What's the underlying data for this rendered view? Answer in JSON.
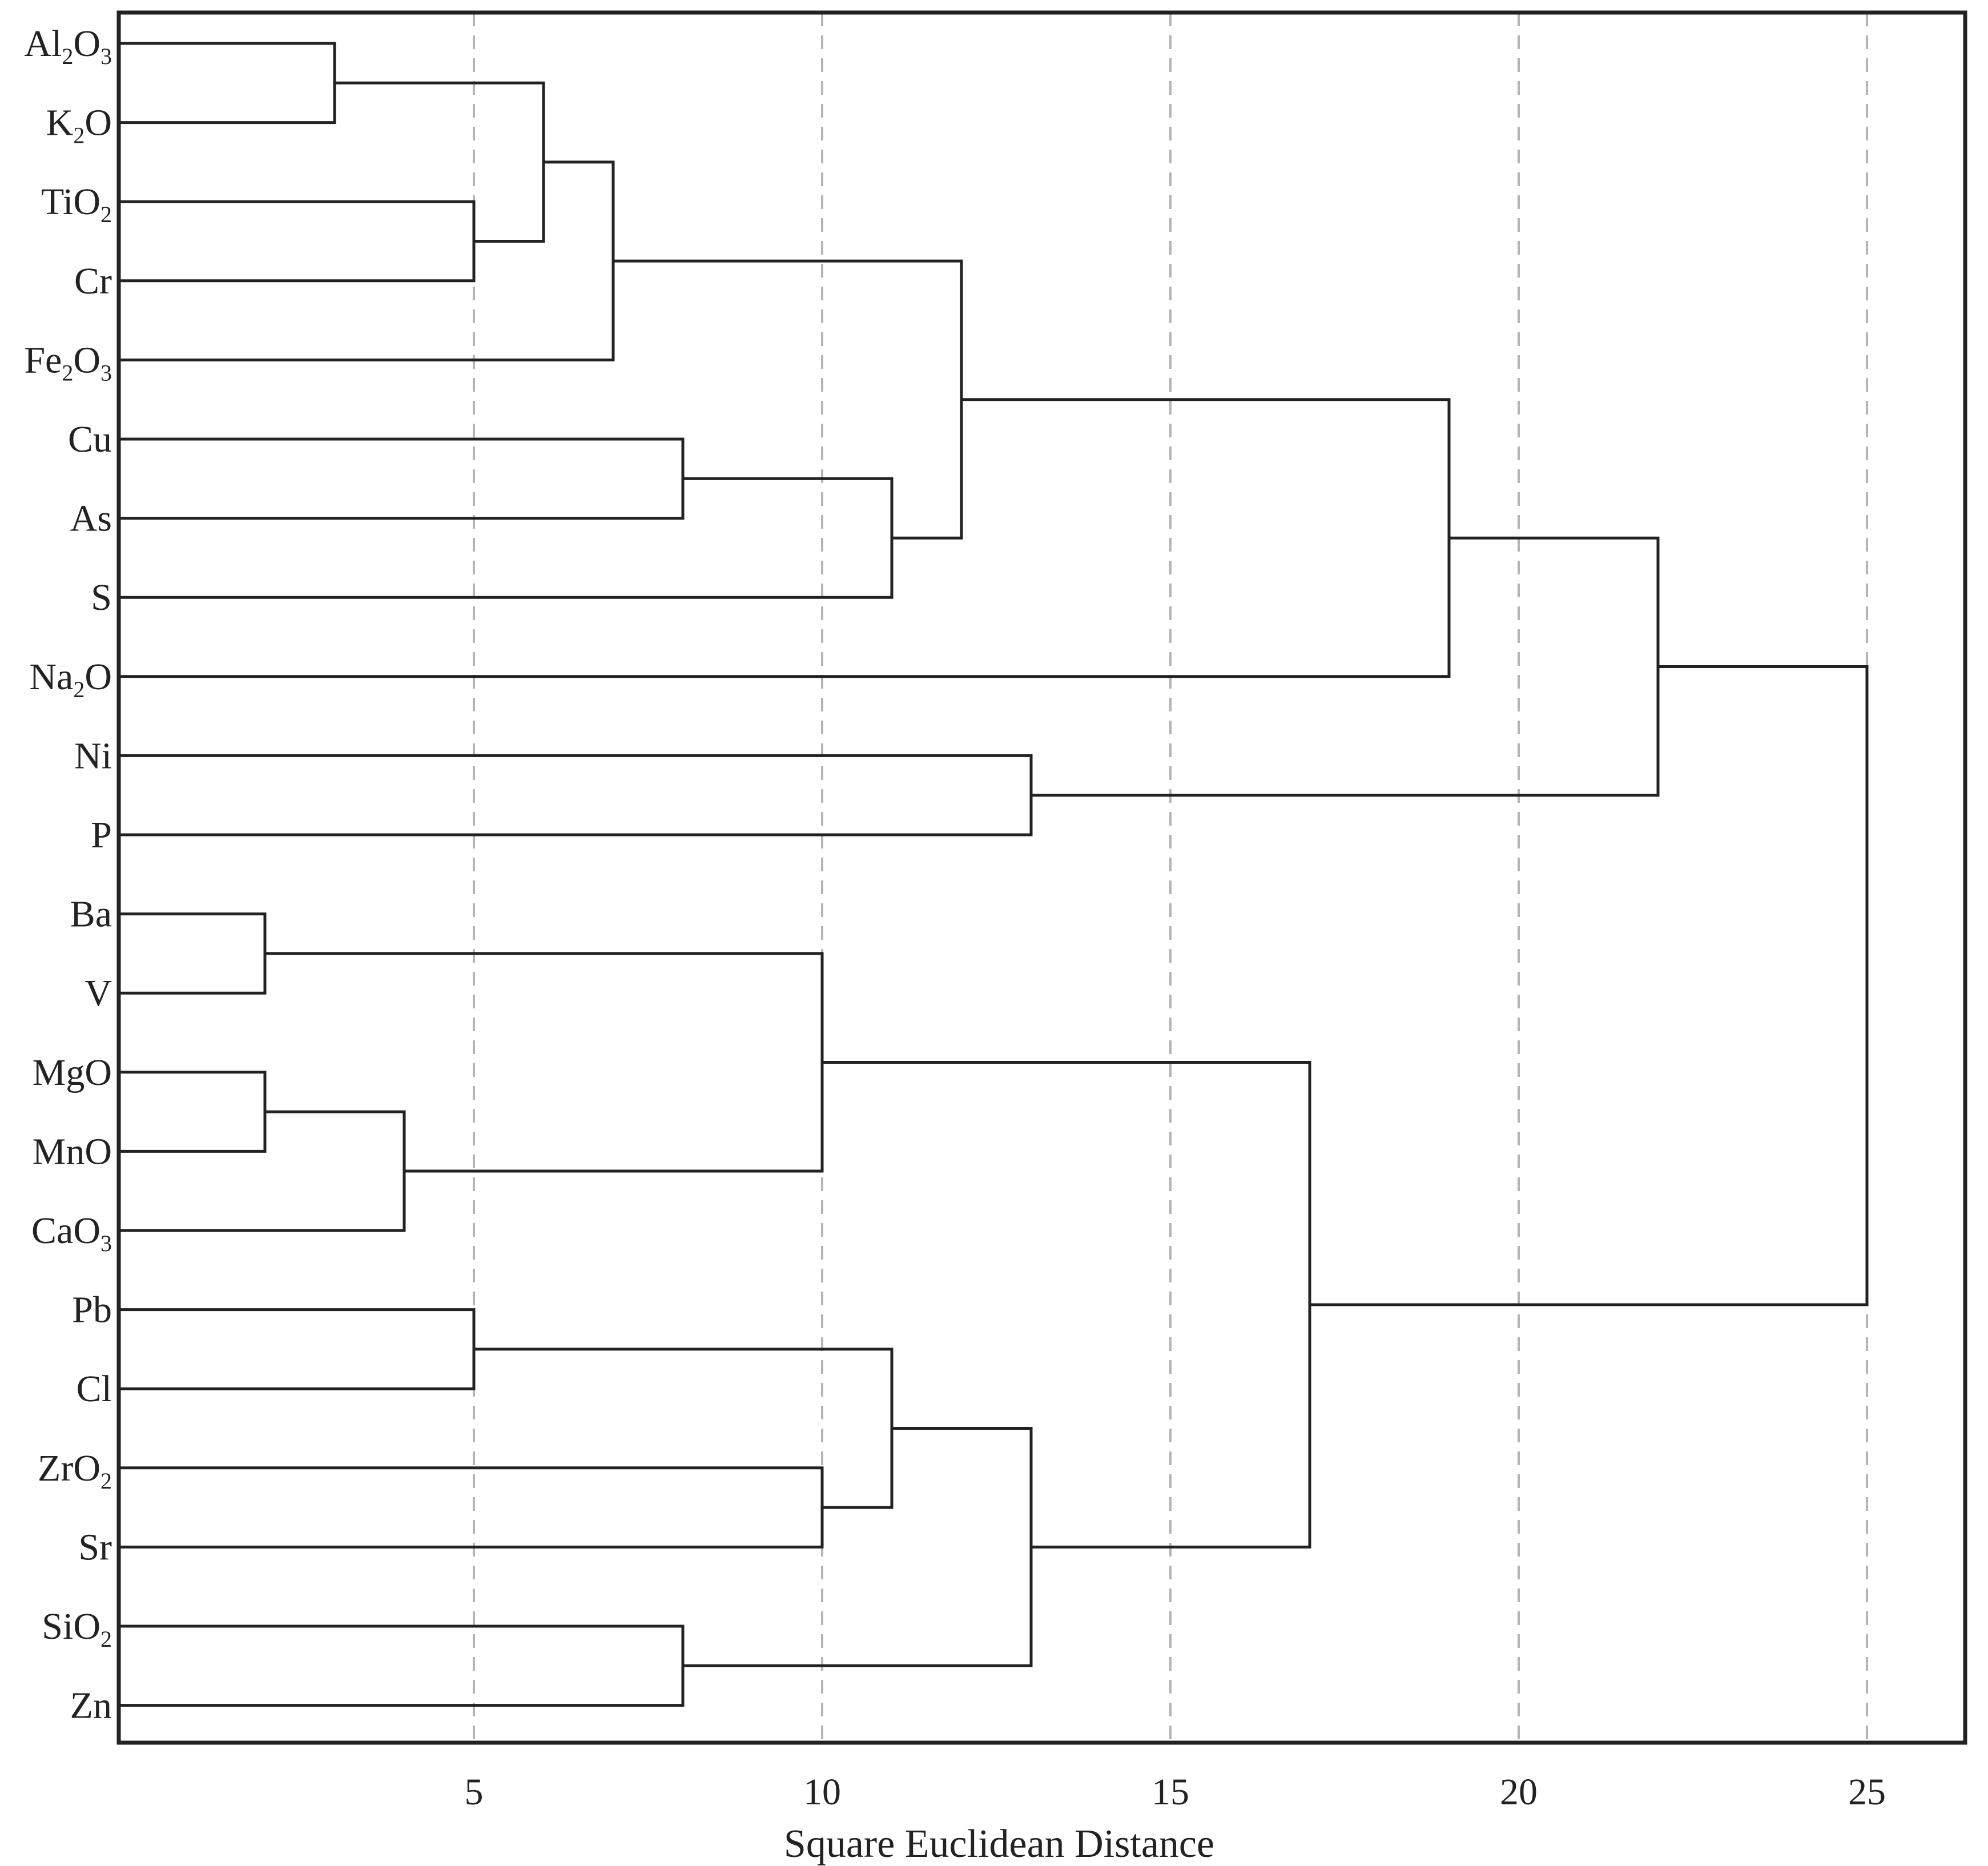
{
  "chart_data": {
    "type": "dendrogram",
    "title": "",
    "xlabel": "Square Euclidean Distance",
    "ylabel": "",
    "xlim": [
      0,
      26.3
    ],
    "xticks": [
      5,
      10,
      15,
      20,
      25
    ],
    "grid": true,
    "colors": {
      "lines": "#222222",
      "grid": "#b4b4b4",
      "background": "#ffffff"
    },
    "leaves": [
      {
        "label": "Al2O3",
        "base": "Al",
        "parts": [
          {
            "t": "Al"
          },
          {
            "t": "2",
            "sub": true
          },
          {
            "t": "O"
          },
          {
            "t": "3",
            "sub": true
          }
        ]
      },
      {
        "label": "K2O",
        "parts": [
          {
            "t": "K"
          },
          {
            "t": "2",
            "sub": true
          },
          {
            "t": "O"
          }
        ]
      },
      {
        "label": "TiO2",
        "parts": [
          {
            "t": "TiO"
          },
          {
            "t": "2",
            "sub": true
          }
        ]
      },
      {
        "label": "Cr",
        "parts": [
          {
            "t": "Cr"
          }
        ]
      },
      {
        "label": "Fe2O3",
        "parts": [
          {
            "t": "Fe"
          },
          {
            "t": "2",
            "sub": true
          },
          {
            "t": "O"
          },
          {
            "t": "3",
            "sub": true
          }
        ]
      },
      {
        "label": "Cu",
        "parts": [
          {
            "t": "Cu"
          }
        ]
      },
      {
        "label": "As",
        "parts": [
          {
            "t": "As"
          }
        ]
      },
      {
        "label": "S",
        "parts": [
          {
            "t": "S"
          }
        ]
      },
      {
        "label": "Na2O",
        "parts": [
          {
            "t": "Na"
          },
          {
            "t": "2",
            "sub": true
          },
          {
            "t": "O"
          }
        ]
      },
      {
        "label": "Ni",
        "parts": [
          {
            "t": "Ni"
          }
        ]
      },
      {
        "label": "P",
        "parts": [
          {
            "t": "P"
          }
        ]
      },
      {
        "label": "Ba",
        "parts": [
          {
            "t": "Ba"
          }
        ]
      },
      {
        "label": "V",
        "parts": [
          {
            "t": "V"
          }
        ]
      },
      {
        "label": "MgO",
        "parts": [
          {
            "t": "MgO"
          }
        ]
      },
      {
        "label": "MnO",
        "parts": [
          {
            "t": "MnO"
          }
        ]
      },
      {
        "label": "CaO3",
        "parts": [
          {
            "t": "CaO"
          },
          {
            "t": "3",
            "sub": true
          }
        ]
      },
      {
        "label": "Pb",
        "parts": [
          {
            "t": "Pb"
          }
        ]
      },
      {
        "label": "Cl",
        "parts": [
          {
            "t": "Cl"
          }
        ]
      },
      {
        "label": "ZrO2",
        "parts": [
          {
            "t": "ZrO"
          },
          {
            "t": "2",
            "sub": true
          }
        ]
      },
      {
        "label": "Sr",
        "parts": [
          {
            "t": "Sr"
          }
        ]
      },
      {
        "label": "SiO2",
        "parts": [
          {
            "t": "SiO"
          },
          {
            "t": "2",
            "sub": true
          }
        ]
      },
      {
        "label": "Zn",
        "parts": [
          {
            "t": "Zn"
          }
        ]
      }
    ],
    "merges": [
      {
        "id": "m1",
        "left": "L0",
        "right": "L1",
        "distance": 3.0
      },
      {
        "id": "m2",
        "left": "L2",
        "right": "L3",
        "distance": 5.0
      },
      {
        "id": "m3",
        "left": "m1",
        "right": "m2",
        "distance": 6.0
      },
      {
        "id": "m4",
        "left": "m3",
        "right": "L4",
        "distance": 7.0
      },
      {
        "id": "m5",
        "left": "L5",
        "right": "L6",
        "distance": 8.0
      },
      {
        "id": "m6",
        "left": "m5",
        "right": "L7",
        "distance": 11.0
      },
      {
        "id": "m7",
        "left": "m4",
        "right": "m6",
        "distance": 12.0
      },
      {
        "id": "m8",
        "left": "m7",
        "right": "L8",
        "distance": 19.0
      },
      {
        "id": "m9",
        "left": "L9",
        "right": "L10",
        "distance": 13.0
      },
      {
        "id": "m10",
        "left": "m8",
        "right": "m9",
        "distance": 22.0
      },
      {
        "id": "m11",
        "left": "L11",
        "right": "L12",
        "distance": 2.0
      },
      {
        "id": "m12",
        "left": "L13",
        "right": "L14",
        "distance": 2.0
      },
      {
        "id": "m13",
        "left": "m12",
        "right": "L15",
        "distance": 4.0
      },
      {
        "id": "m14",
        "left": "m11",
        "right": "m13",
        "distance": 10.0
      },
      {
        "id": "m15",
        "left": "L16",
        "right": "L17",
        "distance": 5.0
      },
      {
        "id": "m16",
        "left": "L18",
        "right": "L19",
        "distance": 10.0
      },
      {
        "id": "m17",
        "left": "m15",
        "right": "m16",
        "distance": 11.0
      },
      {
        "id": "m18",
        "left": "L20",
        "right": "L21",
        "distance": 8.0
      },
      {
        "id": "m19",
        "left": "m17",
        "right": "m18",
        "distance": 13.0
      },
      {
        "id": "m20",
        "left": "m14",
        "right": "m19",
        "distance": 17.0
      },
      {
        "id": "m21",
        "left": "m10",
        "right": "m20",
        "distance": 25.0
      }
    ]
  }
}
